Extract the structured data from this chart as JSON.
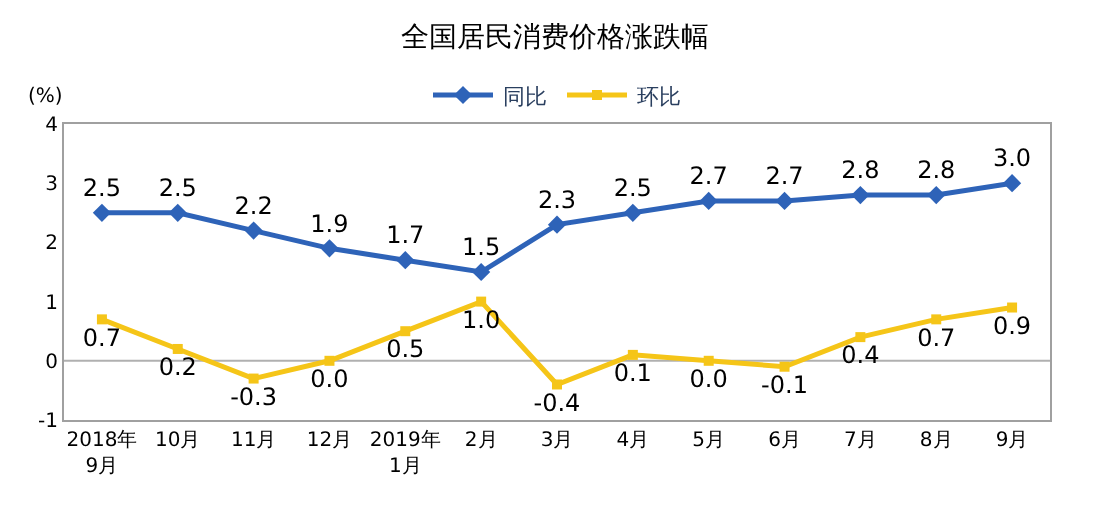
{
  "chart_data": {
    "type": "line",
    "title": "全国居民消费价格涨跌幅",
    "ylabel": "(%)",
    "categories": [
      "2018年\n9月",
      "10月",
      "11月",
      "12月",
      "2019年\n1月",
      "2月",
      "3月",
      "4月",
      "5月",
      "6月",
      "7月",
      "8月",
      "9月"
    ],
    "series": [
      {
        "name": "同比",
        "color": "#2e63b8",
        "marker": "diamond",
        "values": [
          2.5,
          2.5,
          2.2,
          1.9,
          1.7,
          1.5,
          2.3,
          2.5,
          2.7,
          2.7,
          2.8,
          2.8,
          3.0
        ],
        "value_labels": [
          "2.5",
          "2.5",
          "2.2",
          "1.9",
          "1.7",
          "1.5",
          "2.3",
          "2.5",
          "2.7",
          "2.7",
          "2.8",
          "2.8",
          "3.0"
        ]
      },
      {
        "name": "环比",
        "color": "#f5c518",
        "marker": "square",
        "values": [
          0.7,
          0.2,
          -0.3,
          0.0,
          0.5,
          1.0,
          -0.4,
          0.1,
          0.0,
          -0.1,
          0.4,
          0.7,
          0.9
        ],
        "value_labels": [
          "0.7",
          "0.2",
          "-0.3",
          "0.0",
          "0.5",
          "1.0",
          "-0.4",
          "0.1",
          "0.0",
          "-0.1",
          "0.4",
          "0.7",
          "0.9"
        ]
      }
    ],
    "ylim": [
      -1,
      4
    ],
    "yticks": [
      -1,
      0,
      1,
      2,
      3,
      4
    ],
    "ref_lines": [
      {
        "axis": "y",
        "value": 0,
        "color": "#b0b0b0"
      }
    ],
    "legend": "top",
    "line_style": "solid"
  }
}
